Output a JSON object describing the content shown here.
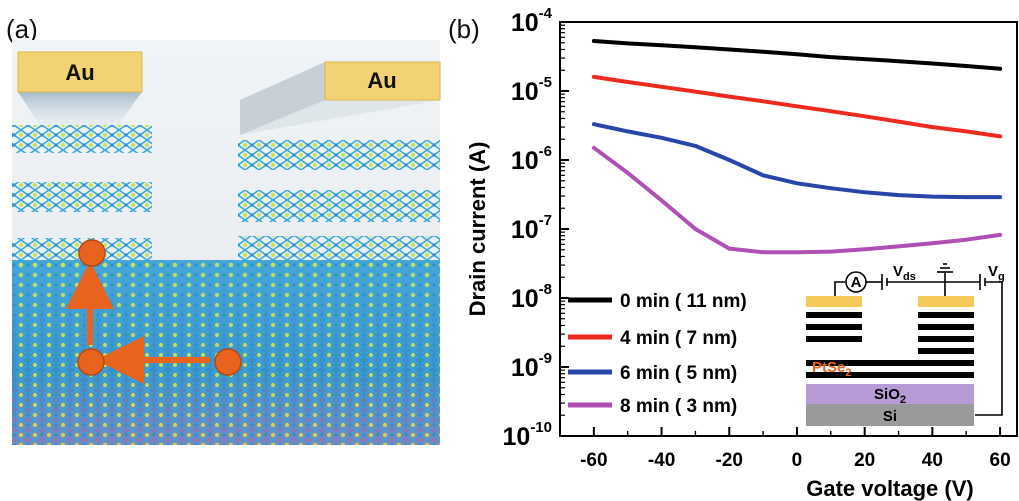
{
  "panel_a": {
    "label": "(a)",
    "electrode_left": "Au",
    "electrode_right": "Au",
    "colors": {
      "electrode": "#f2d272",
      "atom_blue": "#3aa7d9",
      "atom_green": "#c8e25a",
      "carrier": "#e8641e",
      "substrate": "#8e7bb7"
    }
  },
  "panel_b_label": "(b)",
  "chart_data": {
    "type": "line",
    "xlabel": "Gate voltage (V)",
    "ylabel": "Drain current (A)",
    "xlim": [
      -70,
      65
    ],
    "yscale": "log",
    "ylim": [
      1e-10,
      0.0001
    ],
    "xticks": [
      -60,
      -40,
      -20,
      0,
      20,
      40,
      60
    ],
    "yticks": [
      {
        "base": "10",
        "exp": "-4",
        "value": 0.0001
      },
      {
        "base": "10",
        "exp": "-5",
        "value": 1e-05
      },
      {
        "base": "10",
        "exp": "-6",
        "value": 1e-06
      },
      {
        "base": "10",
        "exp": "-7",
        "value": 1e-07
      },
      {
        "base": "10",
        "exp": "-8",
        "value": 1e-08
      },
      {
        "base": "10",
        "exp": "-9",
        "value": 1e-09
      },
      {
        "base": "10",
        "exp": "-10",
        "value": 1e-10
      }
    ],
    "x": [
      -60,
      -50,
      -40,
      -30,
      -20,
      -10,
      0,
      10,
      20,
      30,
      40,
      50,
      60
    ],
    "series": [
      {
        "name": "0 min ( 11 nm)",
        "color": "#000000",
        "values": [
          5.3e-05,
          4.9e-05,
          4.6e-05,
          4.3e-05,
          4e-05,
          3.7e-05,
          3.4e-05,
          3.1e-05,
          2.9e-05,
          2.7e-05,
          2.5e-05,
          2.3e-05,
          2.1e-05
        ]
      },
      {
        "name": "4 min ( 7 nm)",
        "color": "#ee2a1e",
        "values": [
          1.6e-05,
          1.35e-05,
          1.15e-05,
          9.8e-06,
          8.3e-06,
          7.1e-06,
          6e-06,
          5.1e-06,
          4.3e-06,
          3.6e-06,
          3e-06,
          2.6e-06,
          2.2e-06
        ]
      },
      {
        "name": "6 min ( 5 nm)",
        "color": "#2846a8",
        "values": [
          3.3e-06,
          2.6e-06,
          2.1e-06,
          1.6e-06,
          1e-06,
          6e-07,
          4.6e-07,
          3.9e-07,
          3.4e-07,
          3.1e-07,
          2.95e-07,
          2.9e-07,
          2.9e-07
        ]
      },
      {
        "name": "8 min ( 3 nm)",
        "color": "#b04fb4",
        "values": [
          1.5e-06,
          6.5e-07,
          2.6e-07,
          1e-07,
          5.2e-08,
          4.6e-08,
          4.6e-08,
          4.7e-08,
          5.1e-08,
          5.6e-08,
          6.2e-08,
          7e-08,
          8.2e-08
        ]
      }
    ],
    "legend_position": "bottom-left",
    "inset": {
      "ammeter": "A",
      "vds_base": "V",
      "vds_sub": "ds",
      "vg_base": "V",
      "vg_sub": "g",
      "ptse2_base": "PtSe",
      "ptse2_sub": "2",
      "sio2_base": "SiO",
      "sio2_sub": "2",
      "si": "Si",
      "colors": {
        "ptse2_text": "#e8641e",
        "sio2": "#b59ad6",
        "si": "#9a9a9a",
        "layers": "#000000",
        "contact": "#f5c95a"
      }
    }
  }
}
